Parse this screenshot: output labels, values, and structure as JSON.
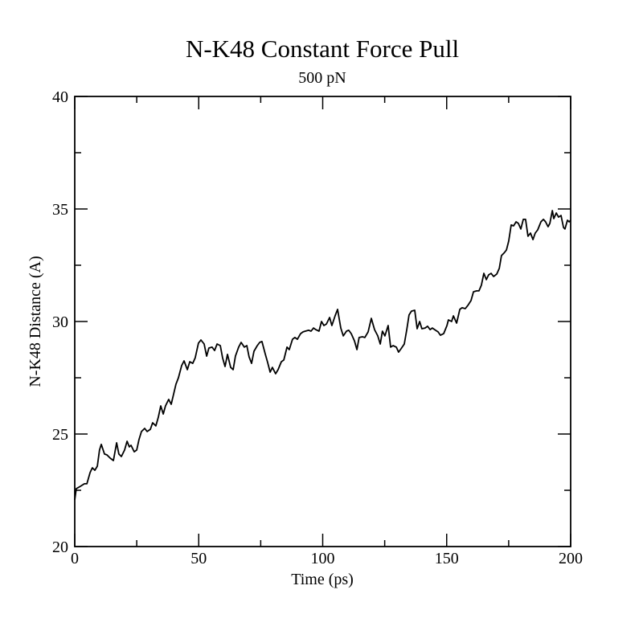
{
  "chart_data": {
    "type": "line",
    "title": "N-K48 Constant Force Pull",
    "subtitle": "500 pN",
    "xlabel": "Time (ps)",
    "ylabel": "N-K48 Distance (A)",
    "xlim": [
      0,
      200
    ],
    "ylim": [
      20,
      40
    ],
    "x_major_ticks": [
      0,
      50,
      100,
      150,
      200
    ],
    "x_minor_ticks": [
      25,
      75,
      125,
      175
    ],
    "y_major_ticks": [
      20,
      25,
      30,
      35,
      40
    ],
    "y_minor_ticks": [
      22.5,
      27.5,
      32.5,
      37.5
    ],
    "grid": false,
    "line_color": "#000000",
    "series": [
      {
        "points": [
          [
            0,
            22.07
          ],
          [
            0.6,
            22.57
          ],
          [
            2.3,
            22.68
          ],
          [
            3.9,
            22.79
          ],
          [
            4.9,
            22.79
          ],
          [
            6.2,
            23.29
          ],
          [
            7.1,
            23.5
          ],
          [
            8.1,
            23.39
          ],
          [
            9.1,
            23.57
          ],
          [
            10,
            24.29
          ],
          [
            10.7,
            24.54
          ],
          [
            12,
            24.11
          ],
          [
            13,
            24.07
          ],
          [
            14.3,
            23.93
          ],
          [
            15.6,
            23.82
          ],
          [
            16.9,
            24.61
          ],
          [
            17.8,
            24.11
          ],
          [
            18.8,
            24
          ],
          [
            20.1,
            24.29
          ],
          [
            21.1,
            24.68
          ],
          [
            22,
            24.43
          ],
          [
            22.7,
            24.5
          ],
          [
            24,
            24.21
          ],
          [
            25,
            24.29
          ],
          [
            25.9,
            24.75
          ],
          [
            26.9,
            25.11
          ],
          [
            28.2,
            25.25
          ],
          [
            29.2,
            25.11
          ],
          [
            30.5,
            25.21
          ],
          [
            31.4,
            25.5
          ],
          [
            32.7,
            25.36
          ],
          [
            33.7,
            25.75
          ],
          [
            34.7,
            26.25
          ],
          [
            35.7,
            25.89
          ],
          [
            36.6,
            26.25
          ],
          [
            37.9,
            26.54
          ],
          [
            38.9,
            26.32
          ],
          [
            39.9,
            26.79
          ],
          [
            40.8,
            27.21
          ],
          [
            41.8,
            27.5
          ],
          [
            43.1,
            28.04
          ],
          [
            44.1,
            28.25
          ],
          [
            45.4,
            27.86
          ],
          [
            46.4,
            28.21
          ],
          [
            47.6,
            28.14
          ],
          [
            48.6,
            28.39
          ],
          [
            49.9,
            29.04
          ],
          [
            50.9,
            29.18
          ],
          [
            52.2,
            29
          ],
          [
            53.2,
            28.46
          ],
          [
            54.1,
            28.82
          ],
          [
            55.4,
            28.86
          ],
          [
            56.4,
            28.71
          ],
          [
            57.4,
            29
          ],
          [
            58.7,
            28.93
          ],
          [
            59.6,
            28.39
          ],
          [
            60.6,
            28
          ],
          [
            61.6,
            28.54
          ],
          [
            62.9,
            27.96
          ],
          [
            63.9,
            27.86
          ],
          [
            64.8,
            28.46
          ],
          [
            66.1,
            28.86
          ],
          [
            67.1,
            29.07
          ],
          [
            68.4,
            28.86
          ],
          [
            69.4,
            28.93
          ],
          [
            70.3,
            28.43
          ],
          [
            71.3,
            28.14
          ],
          [
            72.3,
            28.68
          ],
          [
            73.6,
            28.93
          ],
          [
            74.6,
            29.07
          ],
          [
            75.5,
            29.11
          ],
          [
            76.8,
            28.57
          ],
          [
            77.8,
            28.18
          ],
          [
            78.8,
            27.75
          ],
          [
            79.7,
            27.96
          ],
          [
            81,
            27.68
          ],
          [
            82,
            27.86
          ],
          [
            83.3,
            28.21
          ],
          [
            84.3,
            28.29
          ],
          [
            85.6,
            28.86
          ],
          [
            86.5,
            28.75
          ],
          [
            87.8,
            29.21
          ],
          [
            88.8,
            29.29
          ],
          [
            89.8,
            29.21
          ],
          [
            91.1,
            29.46
          ],
          [
            92.1,
            29.54
          ],
          [
            93,
            29.57
          ],
          [
            94.3,
            29.61
          ],
          [
            95.3,
            29.57
          ],
          [
            96.3,
            29.71
          ],
          [
            97.2,
            29.64
          ],
          [
            98.5,
            29.57
          ],
          [
            99.5,
            30
          ],
          [
            100.5,
            29.82
          ],
          [
            101.5,
            29.89
          ],
          [
            102.8,
            30.18
          ],
          [
            103.7,
            29.82
          ],
          [
            105,
            30.25
          ],
          [
            106,
            30.54
          ],
          [
            107.3,
            29.71
          ],
          [
            108.3,
            29.36
          ],
          [
            109.6,
            29.57
          ],
          [
            110.5,
            29.61
          ],
          [
            111.5,
            29.46
          ],
          [
            112.8,
            29.14
          ],
          [
            113.8,
            28.75
          ],
          [
            114.7,
            29.29
          ],
          [
            116,
            29.32
          ],
          [
            117,
            29.29
          ],
          [
            118.3,
            29.54
          ],
          [
            119.6,
            30.14
          ],
          [
            120.9,
            29.64
          ],
          [
            122.2,
            29.36
          ],
          [
            123.2,
            29
          ],
          [
            124.1,
            29.57
          ],
          [
            125.1,
            29.36
          ],
          [
            126.4,
            29.82
          ],
          [
            127.4,
            28.86
          ],
          [
            128.4,
            28.93
          ],
          [
            129.7,
            28.86
          ],
          [
            130.6,
            28.64
          ],
          [
            131.6,
            28.79
          ],
          [
            132.9,
            29
          ],
          [
            133.9,
            29.64
          ],
          [
            134.8,
            30.29
          ],
          [
            135.8,
            30.46
          ],
          [
            137.1,
            30.5
          ],
          [
            138.1,
            29.68
          ],
          [
            139.1,
            30
          ],
          [
            140,
            29.68
          ],
          [
            141.3,
            29.71
          ],
          [
            142.3,
            29.79
          ],
          [
            143.3,
            29.64
          ],
          [
            144.2,
            29.71
          ],
          [
            145.5,
            29.61
          ],
          [
            146.5,
            29.54
          ],
          [
            147.5,
            29.39
          ],
          [
            148.8,
            29.46
          ],
          [
            150.1,
            29.82
          ],
          [
            150.7,
            30.07
          ],
          [
            152,
            30
          ],
          [
            152.7,
            30.25
          ],
          [
            154,
            29.93
          ],
          [
            155.3,
            30.54
          ],
          [
            156.2,
            30.61
          ],
          [
            157.5,
            30.57
          ],
          [
            158.5,
            30.71
          ],
          [
            159.8,
            30.93
          ],
          [
            160.8,
            31.32
          ],
          [
            162.1,
            31.36
          ],
          [
            163,
            31.36
          ],
          [
            164,
            31.61
          ],
          [
            165,
            32.14
          ],
          [
            166,
            31.86
          ],
          [
            166.9,
            32.07
          ],
          [
            167.9,
            32.14
          ],
          [
            168.9,
            32
          ],
          [
            170.2,
            32.11
          ],
          [
            171.2,
            32.36
          ],
          [
            172.1,
            32.93
          ],
          [
            173.1,
            33.04
          ],
          [
            174.1,
            33.18
          ],
          [
            175,
            33.57
          ],
          [
            176,
            34.29
          ],
          [
            177,
            34.25
          ],
          [
            178,
            34.43
          ],
          [
            178.9,
            34.36
          ],
          [
            179.9,
            34.11
          ],
          [
            180.9,
            34.54
          ],
          [
            181.8,
            34.54
          ],
          [
            182.8,
            33.79
          ],
          [
            183.8,
            33.93
          ],
          [
            184.8,
            33.64
          ],
          [
            185.7,
            33.93
          ],
          [
            186.7,
            34.07
          ],
          [
            188,
            34.43
          ],
          [
            189,
            34.54
          ],
          [
            189.9,
            34.43
          ],
          [
            190.9,
            34.21
          ],
          [
            191.6,
            34.36
          ],
          [
            192.6,
            34.93
          ],
          [
            193.2,
            34.57
          ],
          [
            194.2,
            34.82
          ],
          [
            195.1,
            34.64
          ],
          [
            196.1,
            34.71
          ],
          [
            197.1,
            34.18
          ],
          [
            197.7,
            34.11
          ],
          [
            198.7,
            34.5
          ],
          [
            199.4,
            34.43
          ],
          [
            200,
            34.5
          ]
        ]
      }
    ]
  }
}
